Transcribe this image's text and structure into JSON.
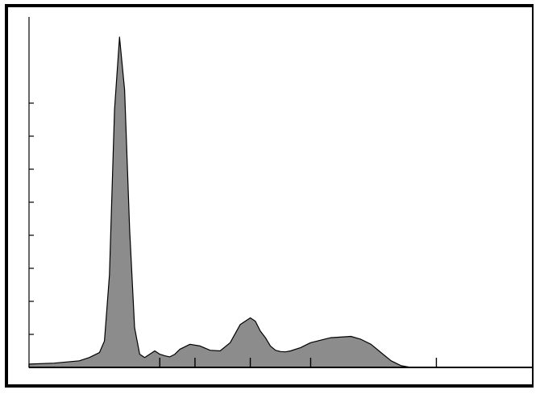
{
  "chart_data": {
    "type": "area",
    "title": "",
    "xlabel": "",
    "ylabel": "",
    "grid": false,
    "legend": "none",
    "fill_color": "#8c8c8c",
    "line_color": "#000000",
    "xlim": [
      0,
      100
    ],
    "ylim": [
      0,
      100
    ],
    "y_ticks": [
      10,
      20,
      30,
      40,
      50,
      60,
      70,
      80
    ],
    "x_ticks": [
      26,
      33,
      44,
      56,
      81
    ],
    "series": [
      {
        "x": [
          0,
          5,
          10,
          12,
          14,
          15,
          16,
          17,
          18,
          19,
          20,
          21,
          22,
          23,
          24,
          25,
          26,
          27,
          28,
          29,
          30,
          32,
          34,
          36,
          38,
          40,
          42,
          44,
          45,
          46,
          47,
          48,
          49,
          50,
          51,
          52,
          54,
          56,
          60,
          64,
          66,
          68,
          70,
          72,
          74,
          76,
          78,
          80,
          82,
          86,
          90,
          95,
          100
        ],
        "y": [
          1.0,
          1.3,
          2.0,
          3.0,
          4.5,
          8.0,
          28.0,
          78.0,
          100.0,
          84.0,
          42.0,
          12.0,
          4.0,
          3.0,
          4.0,
          5.0,
          4.0,
          3.5,
          3.2,
          4.0,
          5.5,
          7.0,
          6.5,
          5.2,
          5.0,
          7.5,
          13.0,
          15.0,
          14.0,
          11.0,
          9.0,
          6.5,
          5.2,
          4.8,
          4.7,
          5.0,
          6.0,
          7.5,
          9.0,
          9.4,
          8.5,
          7.0,
          4.5,
          2.0,
          0.5,
          0.0,
          0.0,
          0.0,
          0.0,
          0.0,
          0.0,
          0.0,
          0.0
        ]
      }
    ]
  }
}
